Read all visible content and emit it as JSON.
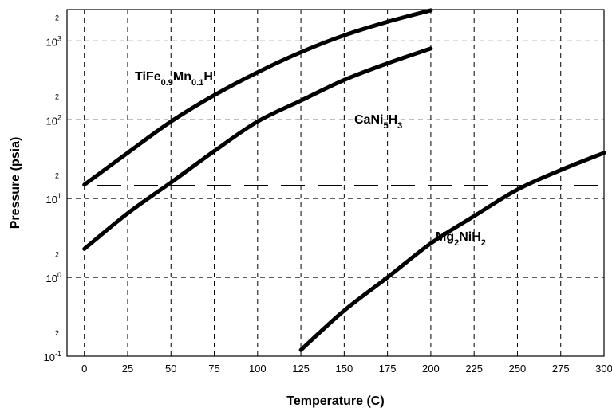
{
  "chart_data": {
    "type": "line",
    "xlabel": "Temperature (C)",
    "ylabel": "Pressure (psia)",
    "xlim": [
      -10,
      300
    ],
    "ylim": [
      0.1,
      2500
    ],
    "yscale": "log",
    "grid": true,
    "x_ticks": [
      "0",
      "25",
      "50",
      "75",
      "100",
      "125",
      "150",
      "175",
      "200",
      "225",
      "250",
      "275",
      "300"
    ],
    "y_ticks": [
      {
        "base": "10",
        "exp": "-1",
        "value": 0.1
      },
      {
        "base": "10",
        "exp": "0",
        "value": 1
      },
      {
        "base": "10",
        "exp": "1",
        "value": 10
      },
      {
        "base": "10",
        "exp": "2",
        "value": 100
      },
      {
        "base": "10",
        "exp": "3",
        "value": 1000
      }
    ],
    "y_minor_ticks": [
      {
        "label": "2",
        "value": 0.2
      },
      {
        "label": "2",
        "value": 2
      },
      {
        "label": "2",
        "value": 20
      },
      {
        "label": "2",
        "value": 200
      },
      {
        "label": "2",
        "value": 2000
      }
    ],
    "reference_line": {
      "value": 14.7
    },
    "series": [
      {
        "name_parts": [
          [
            "TiFe",
            "n"
          ],
          [
            "0.9",
            "sub"
          ],
          [
            "Mn",
            "n"
          ],
          [
            "0.1",
            "sub"
          ],
          [
            "H",
            "n"
          ]
        ],
        "x": [
          0,
          25,
          50,
          75,
          100,
          125,
          150,
          175,
          200
        ],
        "y": [
          15,
          38,
          95,
          205,
          400,
          720,
          1180,
          1750,
          2450
        ]
      },
      {
        "name_parts": [
          [
            "CaNi",
            "n"
          ],
          [
            "5",
            "sub"
          ],
          [
            "H",
            "n"
          ],
          [
            "3",
            "sub"
          ]
        ],
        "x": [
          0,
          25,
          50,
          75,
          100,
          125,
          150,
          175,
          200
        ],
        "y": [
          2.3,
          6.5,
          16,
          40,
          95,
          175,
          320,
          520,
          800
        ]
      },
      {
        "name_parts": [
          [
            "Mg",
            "n"
          ],
          [
            "2",
            "sub"
          ],
          [
            "NiH",
            "n"
          ],
          [
            "2",
            "sub"
          ]
        ],
        "x": [
          125,
          150,
          175,
          200,
          225,
          250,
          275,
          300
        ],
        "y": [
          0.12,
          0.38,
          1.0,
          2.7,
          6.0,
          13,
          23,
          38
        ]
      }
    ]
  }
}
